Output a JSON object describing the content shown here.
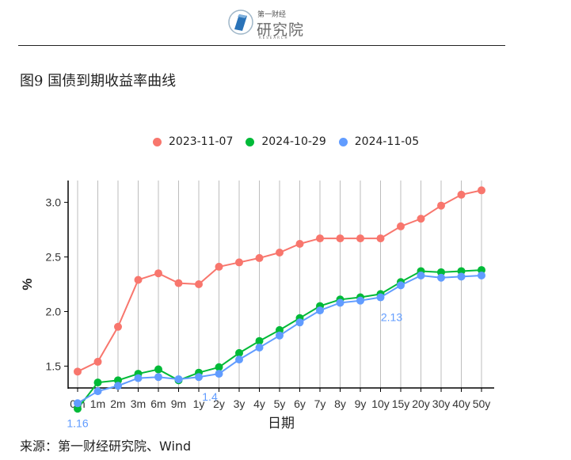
{
  "header": {
    "logo_top": "第一财经",
    "logo_main": "研究院",
    "logo_sub": "RESEARCH"
  },
  "figure_title": "图9 国债到期收益率曲线",
  "source": "来源：第一财经研究院、Wind",
  "chart_data": {
    "type": "line",
    "title": "",
    "xlabel": "日期",
    "ylabel": "%",
    "categories": [
      "0m",
      "1m",
      "2m",
      "3m",
      "6m",
      "9m",
      "1y",
      "2y",
      "3y",
      "4y",
      "5y",
      "6y",
      "7y",
      "8y",
      "9y",
      "10y",
      "15y",
      "20y",
      "30y",
      "40y",
      "50y"
    ],
    "ylim": [
      1.3,
      3.2
    ],
    "yticks": [
      "1.5",
      "2.0",
      "2.5",
      "3.0"
    ],
    "grid": "vertical lines at each category",
    "legend_position": "top",
    "series": [
      {
        "name": "2023-11-07",
        "color": "#F8766D",
        "values": [
          1.45,
          1.54,
          1.86,
          2.29,
          2.35,
          2.26,
          2.25,
          2.41,
          2.45,
          2.49,
          2.54,
          2.62,
          2.67,
          2.67,
          2.67,
          2.67,
          2.78,
          2.85,
          2.97,
          3.07,
          3.11
        ]
      },
      {
        "name": "2024-10-29",
        "color": "#00BA38",
        "values": [
          1.11,
          1.35,
          1.37,
          1.43,
          1.47,
          1.37,
          1.44,
          1.49,
          1.62,
          1.73,
          1.83,
          1.94,
          2.05,
          2.11,
          2.13,
          2.16,
          2.27,
          2.37,
          2.36,
          2.37,
          2.38
        ]
      },
      {
        "name": "2024-11-05",
        "color": "#619CFF",
        "values": [
          1.16,
          1.27,
          1.32,
          1.39,
          1.4,
          1.38,
          1.4,
          1.43,
          1.56,
          1.67,
          1.78,
          1.9,
          2.01,
          2.08,
          2.1,
          2.13,
          2.24,
          2.33,
          2.31,
          2.32,
          2.33
        ]
      }
    ],
    "annotations": [
      {
        "text": "1.16",
        "category": "0m",
        "color": "#619CFF"
      },
      {
        "text": "1.4",
        "category": "1y",
        "color": "#619CFF"
      },
      {
        "text": "2.13",
        "category": "10y",
        "color": "#619CFF"
      }
    ]
  }
}
